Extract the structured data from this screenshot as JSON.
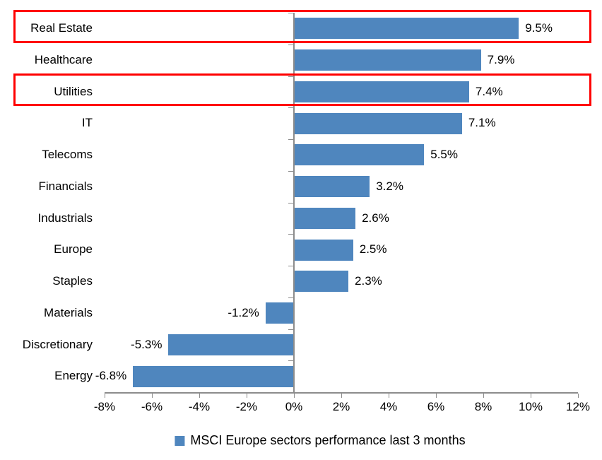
{
  "chart_data": {
    "type": "bar",
    "orientation": "horizontal",
    "title": "",
    "categories": [
      "Real Estate",
      "Healthcare",
      "Utilities",
      "IT",
      "Telecoms",
      "Financials",
      "Industrials",
      "Europe",
      "Staples",
      "Materials",
      "Discretionary",
      "Energy"
    ],
    "values": [
      9.5,
      7.9,
      7.4,
      7.1,
      5.5,
      3.2,
      2.6,
      2.5,
      2.3,
      -1.2,
      -5.3,
      -6.8
    ],
    "value_labels": [
      "9.5%",
      "7.9%",
      "7.4%",
      "7.1%",
      "5.5%",
      "3.2%",
      "2.6%",
      "2.5%",
      "2.3%",
      "-1.2%",
      "-5.3%",
      "-6.8%"
    ],
    "x_ticks": [
      "-8%",
      "-6%",
      "-4%",
      "-2%",
      "0%",
      "2%",
      "4%",
      "6%",
      "8%",
      "10%",
      "12%"
    ],
    "x_range": [
      -8,
      12
    ],
    "x_tick_step": 2,
    "grid": false,
    "legend": "MSCI Europe sectors performance last 3 months",
    "legend_position": "bottom-center",
    "bar_color": "#4F86BE",
    "axis_color": "#8C8C8C",
    "text_color": "#000000",
    "highlight_box_color": "#FF0000",
    "highlighted_categories": [
      "Real Estate",
      "Utilities"
    ]
  }
}
